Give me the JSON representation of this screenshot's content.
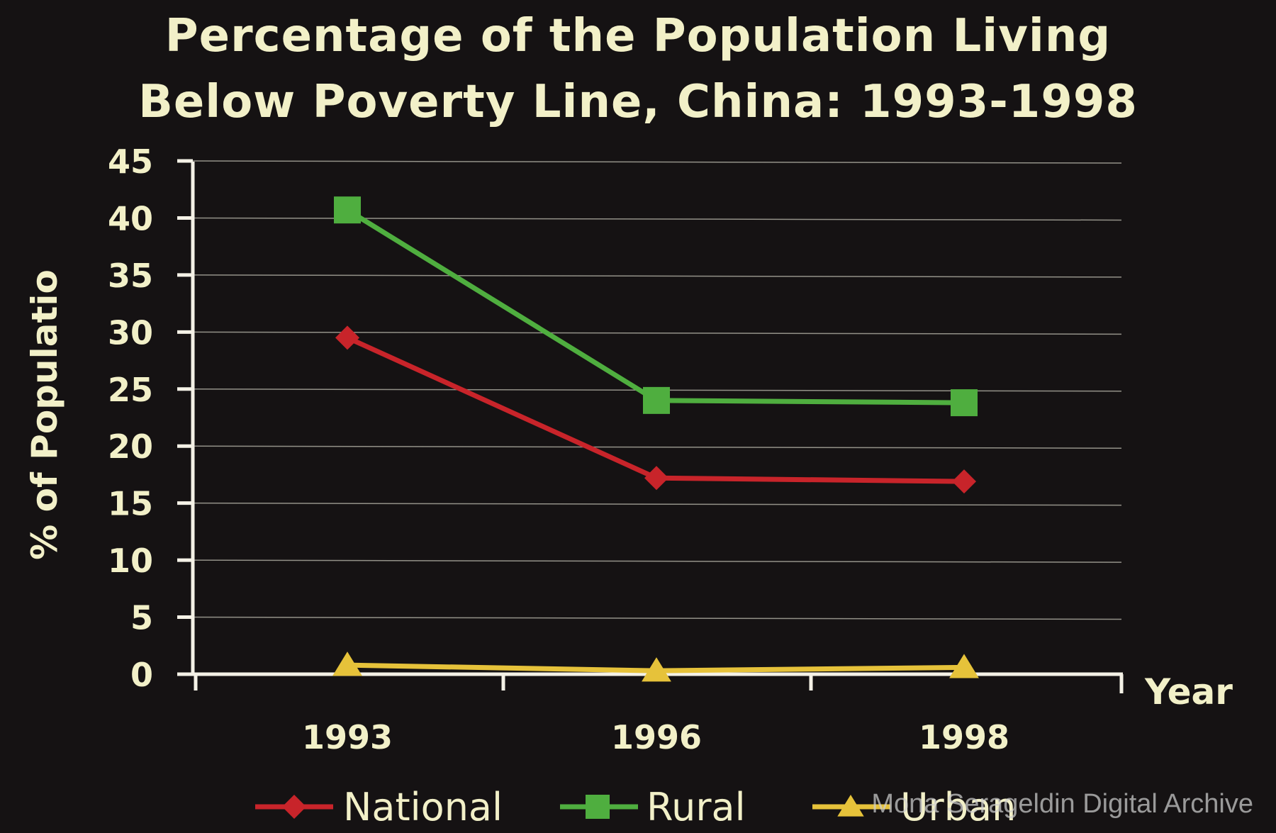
{
  "chart_data": {
    "type": "line",
    "title_lines": [
      "Percentage of the Population Living",
      "Below Poverty Line, China: 1993-1998"
    ],
    "xlabel": "Year",
    "ylabel": "% of Populatio",
    "categories": [
      "1993",
      "1996",
      "1998"
    ],
    "y_ticks": [
      "0",
      "5",
      "10",
      "15",
      "20",
      "25",
      "30",
      "35",
      "40",
      "45"
    ],
    "ylim": [
      0,
      45
    ],
    "grid": true,
    "legend_position": "bottom",
    "series": [
      {
        "name": "National",
        "values": [
          29.5,
          17.2,
          16.9
        ],
        "color": "#c8242a",
        "marker": "diamond"
      },
      {
        "name": "Rural",
        "values": [
          40.7,
          24.0,
          23.8
        ],
        "color": "#4fae3f",
        "marker": "square"
      },
      {
        "name": "Urban",
        "values": [
          0.8,
          0.3,
          0.6
        ],
        "color": "#e6c23a",
        "marker": "triangle"
      }
    ]
  },
  "colors": {
    "background": "#151213",
    "text": "#f2f0c8",
    "axis": "#f4f1e6",
    "grid": "#bdbcb0",
    "watermark": "#cfcfcf"
  },
  "watermark": "Mona Serageldin Digital Archive"
}
